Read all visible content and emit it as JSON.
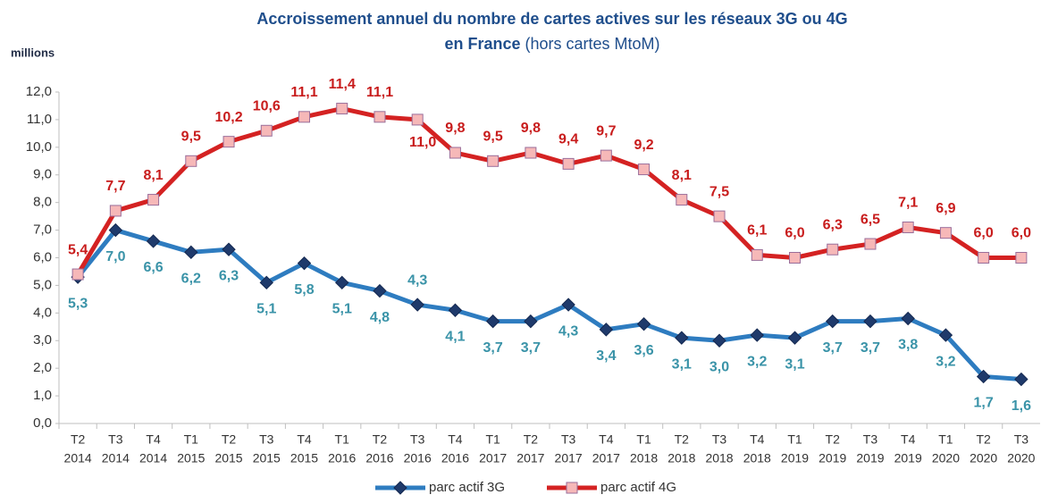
{
  "chart_data": {
    "type": "line",
    "title": [
      "Accroissement annuel du nombre de cartes actives sur les réseaux 3G ou 4G",
      "en France",
      "(hors cartes MtoM)"
    ],
    "y_axis_label": "millions",
    "categories": [
      [
        "T2",
        "2014"
      ],
      [
        "T3",
        "2014"
      ],
      [
        "T4",
        "2014"
      ],
      [
        "T1",
        "2015"
      ],
      [
        "T2",
        "2015"
      ],
      [
        "T3",
        "2015"
      ],
      [
        "T4",
        "2015"
      ],
      [
        "T1",
        "2016"
      ],
      [
        "T2",
        "2016"
      ],
      [
        "T3",
        "2016"
      ],
      [
        "T4",
        "2016"
      ],
      [
        "T1",
        "2017"
      ],
      [
        "T2",
        "2017"
      ],
      [
        "T3",
        "2017"
      ],
      [
        "T4",
        "2017"
      ],
      [
        "T1",
        "2018"
      ],
      [
        "T2",
        "2018"
      ],
      [
        "T3",
        "2018"
      ],
      [
        "T4",
        "2018"
      ],
      [
        "T1",
        "2019"
      ],
      [
        "T2",
        "2019"
      ],
      [
        "T3",
        "2019"
      ],
      [
        "T4",
        "2019"
      ],
      [
        "T1",
        "2020"
      ],
      [
        "T2",
        "2020"
      ],
      [
        "T3",
        "2020"
      ]
    ],
    "series": [
      {
        "name": "parc actif 3G",
        "color": "#2e7cc0",
        "marker_color": "#1f3a6b",
        "label_color": "#3a93a8",
        "values": [
          5.3,
          7.0,
          6.6,
          6.2,
          6.3,
          5.1,
          5.8,
          5.1,
          4.8,
          4.3,
          4.1,
          3.7,
          3.7,
          4.3,
          3.4,
          3.6,
          3.1,
          3.0,
          3.2,
          3.1,
          3.7,
          3.7,
          3.8,
          3.2,
          1.7,
          1.6
        ],
        "value_labels": [
          "5,3",
          "7,0",
          "6,6",
          "6,2",
          "6,3",
          "5,1",
          "5,8",
          "5,1",
          "4,8",
          "4,3",
          "4,1",
          "3,7",
          "3,7",
          "4,3",
          "3,4",
          "3,6",
          "3,1",
          "3,0",
          "3,2",
          "3,1",
          "3,7",
          "3,7",
          "3,8",
          "3,2",
          "1,7",
          "1,6"
        ]
      },
      {
        "name": "parc actif 4G",
        "color": "#d42222",
        "marker_color": "#f6b8b8",
        "label_color": "#c81c1c",
        "values": [
          5.4,
          7.7,
          8.1,
          9.5,
          10.2,
          10.6,
          11.1,
          11.4,
          11.1,
          11.0,
          9.8,
          9.5,
          9.8,
          9.4,
          9.7,
          9.2,
          8.1,
          7.5,
          6.1,
          6.0,
          6.3,
          6.5,
          7.1,
          6.9,
          6.0,
          6.0
        ],
        "value_labels": [
          "5,4",
          "7,7",
          "8,1",
          "9,5",
          "10,2",
          "10,6",
          "11,1",
          "11,4",
          "11,1",
          "11,0",
          "9,8",
          "9,5",
          "9,8",
          "9,4",
          "9,7",
          "9,2",
          "8,1",
          "7,5",
          "6,1",
          "6,0",
          "6,3",
          "6,5",
          "7,1",
          "6,9",
          "6,0",
          "6,0"
        ]
      }
    ],
    "ylim": [
      0,
      12
    ],
    "yticks": [
      {
        "value": 0,
        "label": "0,0"
      },
      {
        "value": 1,
        "label": "1,0"
      },
      {
        "value": 2,
        "label": "2,0"
      },
      {
        "value": 3,
        "label": "3,0"
      },
      {
        "value": 4,
        "label": "4,0"
      },
      {
        "value": 5,
        "label": "5,0"
      },
      {
        "value": 6,
        "label": "6,0"
      },
      {
        "value": 7,
        "label": "7,0"
      },
      {
        "value": 8,
        "label": "8,0"
      },
      {
        "value": 9,
        "label": "9,0"
      },
      {
        "value": 10,
        "label": "10,0"
      },
      {
        "value": 11,
        "label": "11,0"
      },
      {
        "value": 12,
        "label": "12,0"
      }
    ],
    "grid": false
  }
}
